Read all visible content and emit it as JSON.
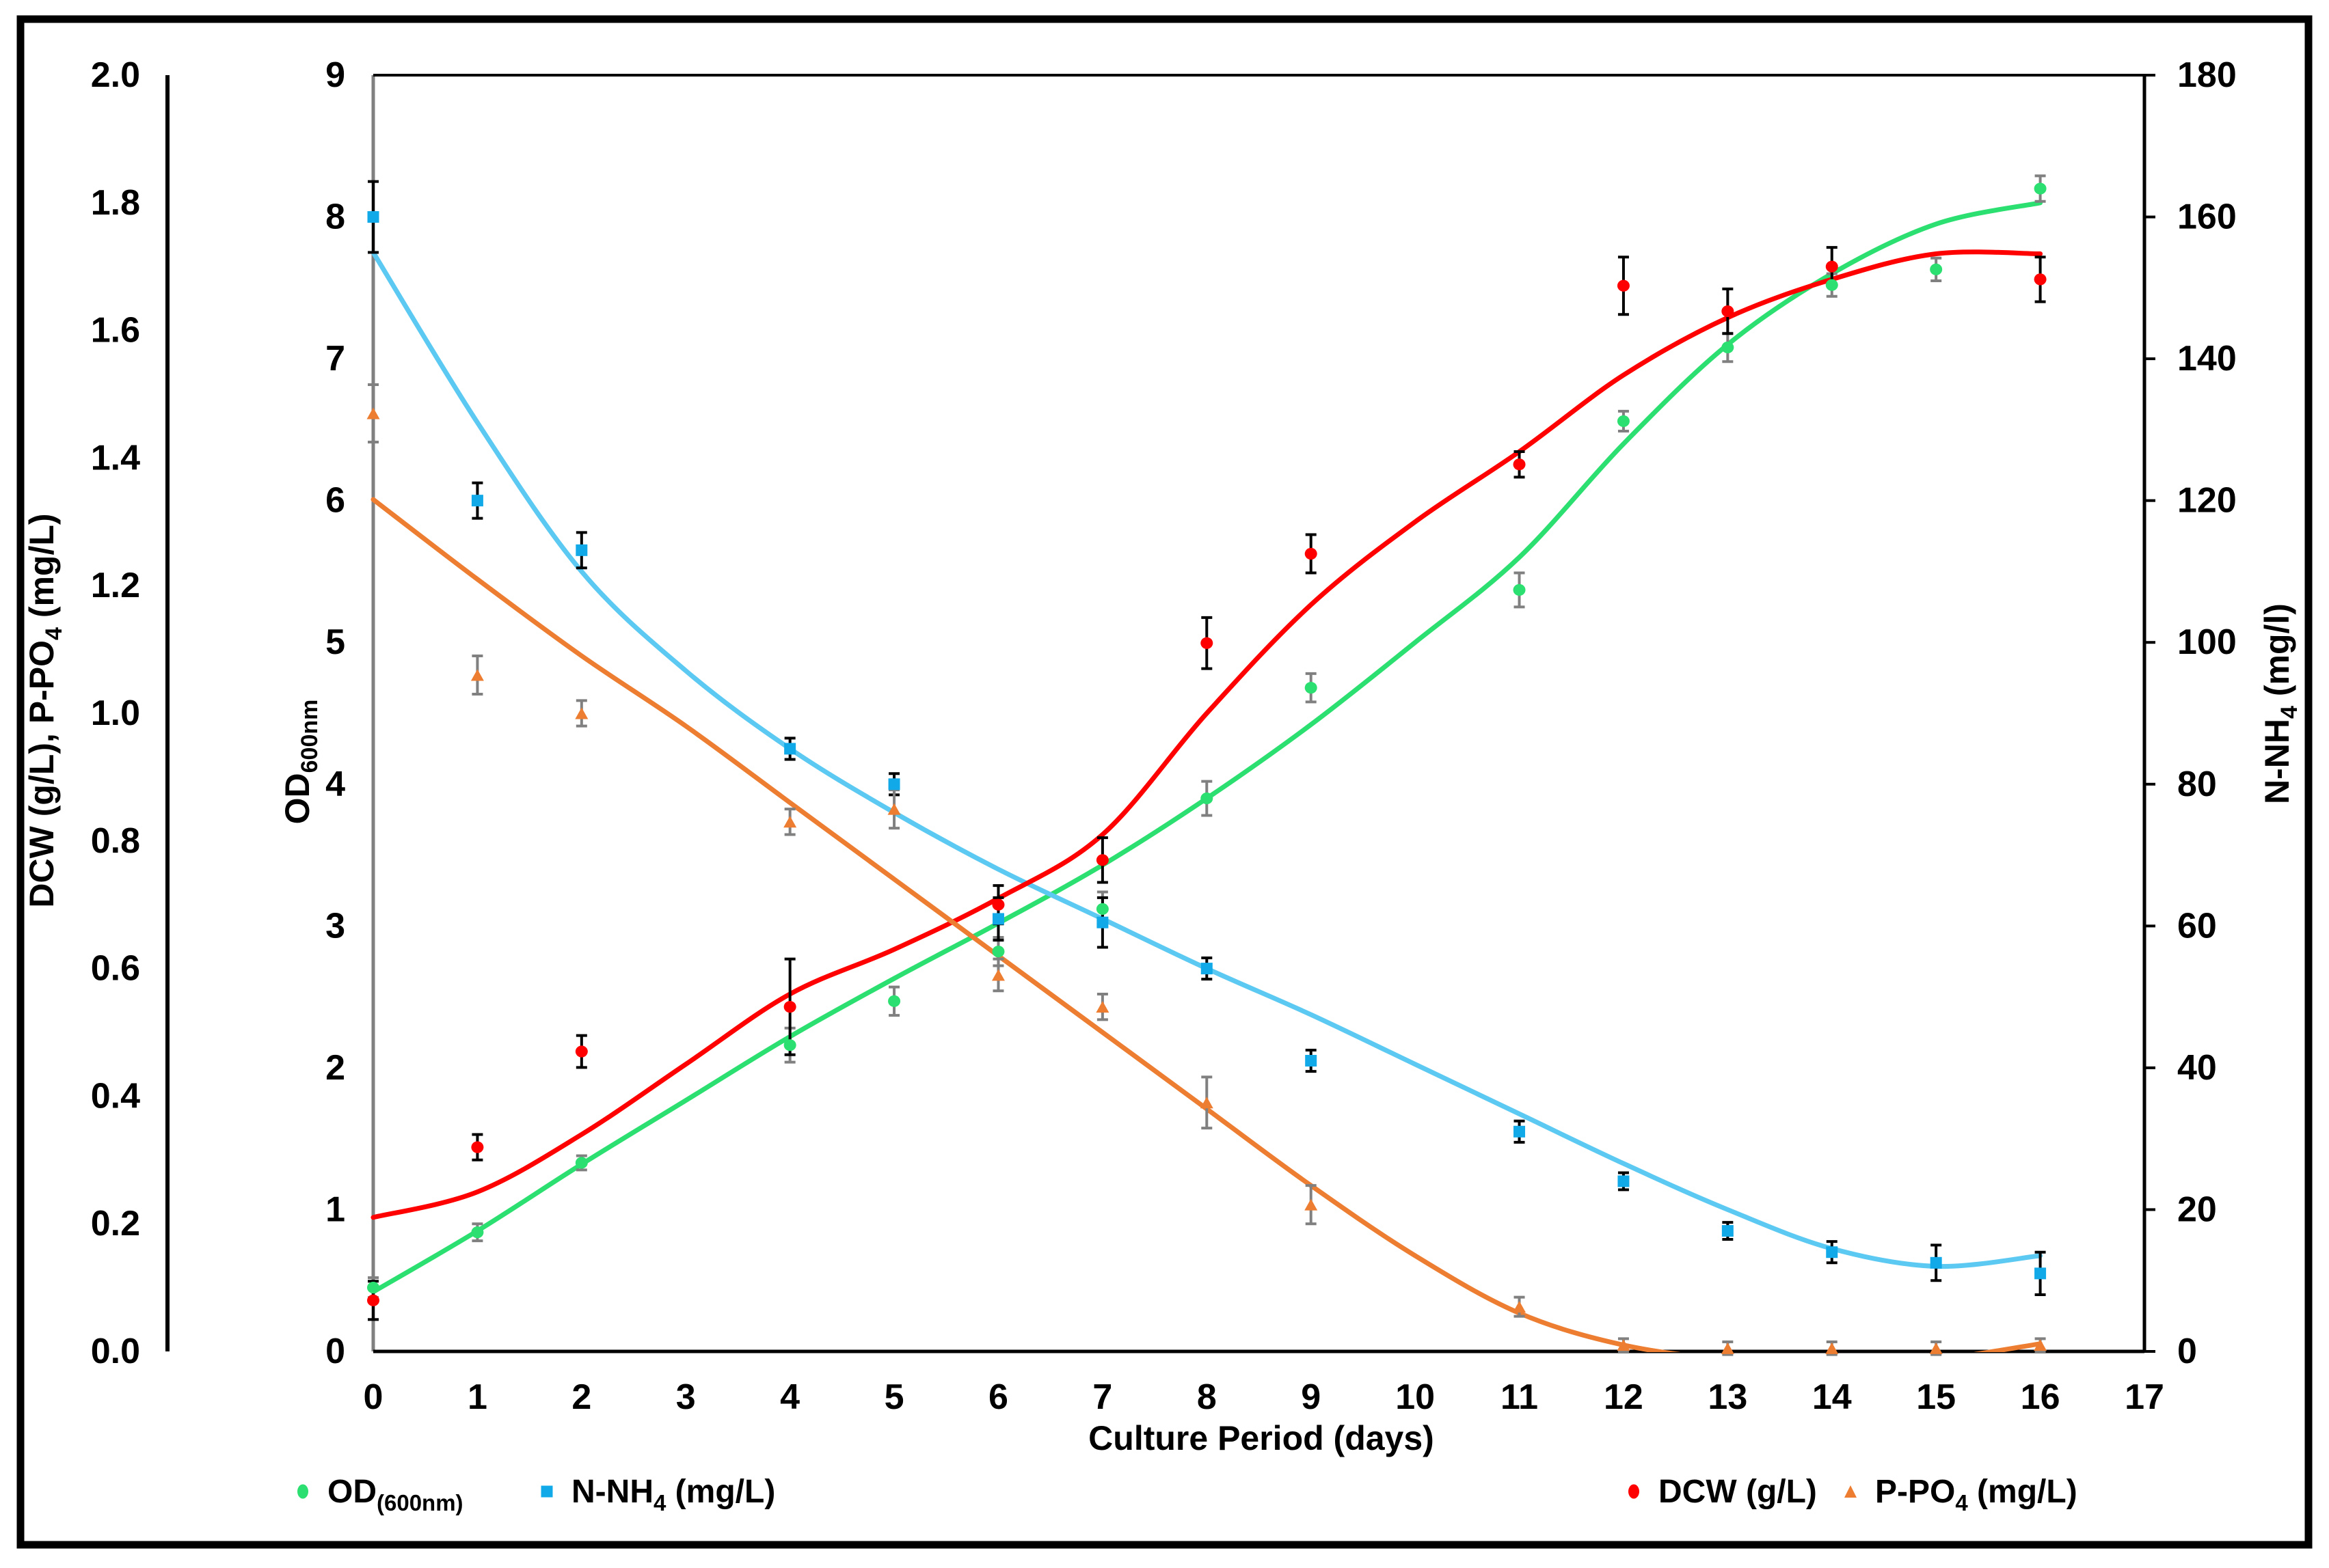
{
  "figure": {
    "background": "#ffffff",
    "border_color": "#000000"
  },
  "chart_data": {
    "type": "scatter",
    "title": "",
    "x": {
      "title": "Culture Period (days)",
      "min": 0,
      "max": 17,
      "tick_labels": [
        "0",
        "1",
        "2",
        "3",
        "4",
        "5",
        "6",
        "7",
        "8",
        "9",
        "10",
        "11",
        "12",
        "13",
        "14",
        "15",
        "16",
        "17"
      ]
    },
    "axes": {
      "dcw": {
        "side": "outer-left",
        "min": 0,
        "max": 2,
        "tick_labels": [
          "2.0",
          "1.8",
          "1.6",
          "1.4",
          "1.2",
          "1.0",
          "0.8",
          "0.6",
          "0.4",
          "0.2",
          "0.0"
        ],
        "title_parts": [
          {
            "t": "DCW (g/L), P-PO"
          },
          {
            "t": "4",
            "sub": true
          },
          {
            "t": " (mg/L)"
          }
        ]
      },
      "od": {
        "side": "inner-left",
        "min": 0,
        "max": 9,
        "tick_labels": [
          "9",
          "8",
          "7",
          "6",
          "5",
          "4",
          "3",
          "2",
          "1",
          "0"
        ],
        "title_parts": [
          {
            "t": "OD"
          },
          {
            "t": "600nm",
            "sub": true
          }
        ]
      },
      "n": {
        "side": "right",
        "min": 0,
        "max": 180,
        "tick_labels": [
          "180",
          "160",
          "140",
          "120",
          "100",
          "80",
          "60",
          "40",
          "20",
          "0"
        ],
        "title_parts": [
          {
            "t": "N-NH"
          },
          {
            "t": "4",
            "sub": true
          },
          {
            "t": " (mg/l)"
          }
        ]
      }
    },
    "series": [
      {
        "id": "od600",
        "axis": "od",
        "marker": "circle",
        "color": "#2BDF70",
        "line_color": "#2BDF70",
        "err_color": "#808080",
        "points": [
          [
            0,
            0.45,
            0.07
          ],
          [
            1,
            0.84,
            0.06
          ],
          [
            2,
            1.33,
            0.05
          ],
          [
            4,
            2.16,
            0.12
          ],
          [
            5,
            2.47,
            0.1
          ],
          [
            6,
            2.82,
            0.1
          ],
          [
            7,
            3.12,
            0.12
          ],
          [
            8,
            3.9,
            0.12
          ],
          [
            9,
            4.68,
            0.1
          ],
          [
            11,
            5.37,
            0.12
          ],
          [
            12,
            6.56,
            0.07
          ],
          [
            13,
            7.08,
            0.1
          ],
          [
            14,
            7.52,
            0.08
          ],
          [
            15,
            7.63,
            0.08
          ],
          [
            16,
            8.2,
            0.09
          ]
        ],
        "fit": [
          [
            0,
            0.42
          ],
          [
            1,
            0.85
          ],
          [
            2,
            1.32
          ],
          [
            3,
            1.77
          ],
          [
            4,
            2.22
          ],
          [
            5,
            2.63
          ],
          [
            6,
            3.02
          ],
          [
            7,
            3.43
          ],
          [
            8,
            3.9
          ],
          [
            9,
            4.42
          ],
          [
            10,
            5.0
          ],
          [
            11,
            5.6
          ],
          [
            12,
            6.4
          ],
          [
            13,
            7.1
          ],
          [
            14,
            7.6
          ],
          [
            15,
            7.95
          ],
          [
            16,
            8.1
          ]
        ]
      },
      {
        "id": "nnh4",
        "axis": "n",
        "marker": "square",
        "color": "#12A9E8",
        "line_color": "#5BC9F2",
        "err_color": "#000000",
        "points": [
          [
            0,
            160,
            5
          ],
          [
            1,
            120,
            2.5
          ],
          [
            2,
            113,
            2.5
          ],
          [
            4,
            85,
            1.5
          ],
          [
            5,
            80,
            1.5
          ],
          [
            6,
            61,
            3
          ],
          [
            7,
            60.5,
            3.5
          ],
          [
            8,
            54,
            1.5
          ],
          [
            9,
            41,
            1.5
          ],
          [
            11,
            31,
            1.5
          ],
          [
            12,
            24,
            1.2
          ],
          [
            13,
            17,
            1.2
          ],
          [
            14,
            14,
            1.5
          ],
          [
            15,
            12.5,
            2.5
          ],
          [
            16,
            11,
            3
          ]
        ],
        "fit": [
          [
            0,
            155
          ],
          [
            1,
            131
          ],
          [
            2,
            110
          ],
          [
            3,
            96
          ],
          [
            4,
            85
          ],
          [
            5,
            76
          ],
          [
            6,
            68
          ],
          [
            7,
            61
          ],
          [
            8,
            54
          ],
          [
            9,
            47.5
          ],
          [
            10,
            40.5
          ],
          [
            11,
            33.5
          ],
          [
            12,
            26.5
          ],
          [
            13,
            20
          ],
          [
            14,
            14.5
          ],
          [
            15,
            12
          ],
          [
            16,
            13.5
          ]
        ]
      },
      {
        "id": "dcw",
        "axis": "dcw",
        "marker": "circle",
        "color": "#FF0000",
        "line_color": "#FF0000",
        "err_color": "#000000",
        "points": [
          [
            0,
            0.08,
            0.03
          ],
          [
            1,
            0.32,
            0.02
          ],
          [
            2,
            0.47,
            0.025
          ],
          [
            4,
            0.54,
            0.075
          ],
          [
            6,
            0.7,
            0.03
          ],
          [
            7,
            0.77,
            0.035
          ],
          [
            8,
            1.11,
            0.04
          ],
          [
            9,
            1.25,
            0.03
          ],
          [
            11,
            1.39,
            0.02
          ],
          [
            12,
            1.67,
            0.045
          ],
          [
            13,
            1.63,
            0.035
          ],
          [
            14,
            1.7,
            0.03
          ],
          [
            16,
            1.68,
            0.035
          ]
        ],
        "fit": [
          [
            0,
            0.21
          ],
          [
            1,
            0.25
          ],
          [
            2,
            0.34
          ],
          [
            3,
            0.45
          ],
          [
            4,
            0.56
          ],
          [
            5,
            0.63
          ],
          [
            6,
            0.71
          ],
          [
            7,
            0.81
          ],
          [
            8,
            1.0
          ],
          [
            9,
            1.17
          ],
          [
            10,
            1.3
          ],
          [
            11,
            1.41
          ],
          [
            12,
            1.53
          ],
          [
            13,
            1.62
          ],
          [
            14,
            1.68
          ],
          [
            15,
            1.72
          ],
          [
            16,
            1.72
          ]
        ]
      },
      {
        "id": "ppo4",
        "axis": "dcw",
        "marker": "triangle",
        "color": "#ED7D31",
        "line_color": "#ED7D31",
        "err_color": "#808080",
        "points": [
          [
            0,
            1.47,
            0.045
          ],
          [
            1,
            1.06,
            0.03
          ],
          [
            2,
            1.0,
            0.02
          ],
          [
            4,
            0.83,
            0.02
          ],
          [
            5,
            0.85,
            0.03
          ],
          [
            6,
            0.59,
            0.025
          ],
          [
            7,
            0.54,
            0.02
          ],
          [
            8,
            0.39,
            0.04
          ],
          [
            9,
            0.23,
            0.03
          ],
          [
            11,
            0.07,
            0.015
          ],
          [
            12,
            0.01,
            0.01
          ],
          [
            13,
            0.005,
            0.01
          ],
          [
            14,
            0.005,
            0.01
          ],
          [
            15,
            0.005,
            0.01
          ],
          [
            16,
            0.01,
            0.01
          ]
        ],
        "fit": [
          [
            0,
            1.335
          ],
          [
            1,
            1.21
          ],
          [
            2,
            1.09
          ],
          [
            3,
            0.98
          ],
          [
            4,
            0.86
          ],
          [
            5,
            0.74
          ],
          [
            6,
            0.62
          ],
          [
            7,
            0.5
          ],
          [
            8,
            0.38
          ],
          [
            9,
            0.26
          ],
          [
            10,
            0.15
          ],
          [
            11,
            0.06
          ],
          [
            12,
            0.01
          ],
          [
            13,
            -0.012
          ],
          [
            14,
            -0.016
          ],
          [
            15,
            -0.012
          ],
          [
            16,
            0.012
          ]
        ]
      }
    ],
    "legend": [
      {
        "series": "od600",
        "marker": "circle",
        "color": "#2BDF70",
        "parts": [
          {
            "t": "OD"
          },
          {
            "t": "(600nm)",
            "sub": true
          }
        ]
      },
      {
        "series": "nnh4",
        "marker": "square",
        "color": "#12A9E8",
        "parts": [
          {
            "t": "N-NH"
          },
          {
            "t": "4",
            "sub": true
          },
          {
            "t": " (mg/L)"
          }
        ]
      },
      {
        "series": "dcw",
        "marker": "circle",
        "color": "#FF0000",
        "parts": [
          {
            "t": "DCW (g/L)"
          }
        ]
      },
      {
        "series": "ppo4",
        "marker": "triangle",
        "color": "#ED7D31",
        "parts": [
          {
            "t": "P-PO"
          },
          {
            "t": "4",
            "sub": true
          },
          {
            "t": " (mg/L)"
          }
        ]
      }
    ]
  }
}
